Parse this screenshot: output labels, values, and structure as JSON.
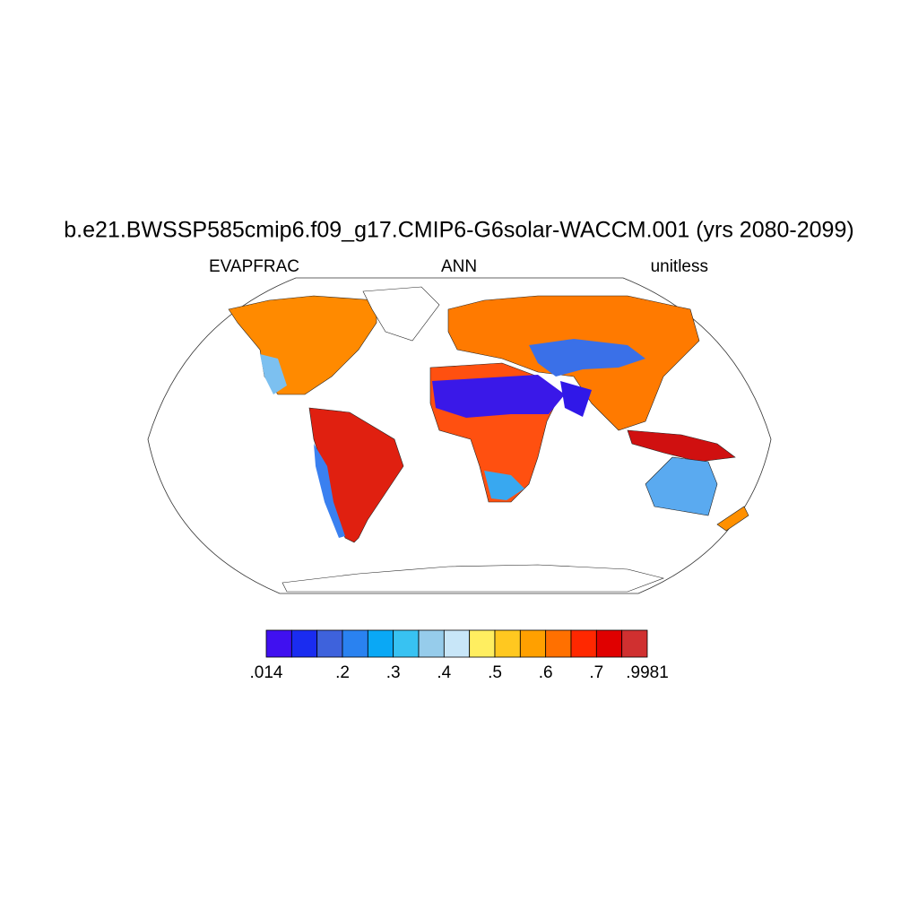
{
  "title": "b.e21.BWSSP585cmip6.f09_g17.CMIP6-G6solar-WACCM.001 (yrs 2080-2099)",
  "left_label": "EVAPFRAC",
  "center_label": "ANN",
  "right_label": "unitless",
  "colorbar": {
    "colors": [
      "#4010f0",
      "#1a2cf0",
      "#3e62dc",
      "#2a82f0",
      "#0aa8f5",
      "#38c2f2",
      "#96cceb",
      "#c8e6f8",
      "#ffee60",
      "#ffc820",
      "#ffa000",
      "#ff7000",
      "#ff2800",
      "#e00000",
      "#d03030"
    ],
    "ticks": [
      {
        "value": 0.014,
        "label": ".014"
      },
      {
        "value": 0.2,
        "label": ".2"
      },
      {
        "value": 0.3,
        "label": ".3"
      },
      {
        "value": 0.4,
        "label": ".4"
      },
      {
        "value": 0.5,
        "label": ".5"
      },
      {
        "value": 0.6,
        "label": ".6"
      },
      {
        "value": 0.7,
        "label": ".7"
      },
      {
        "value": 0.9981,
        "label": ".9981"
      }
    ]
  }
}
